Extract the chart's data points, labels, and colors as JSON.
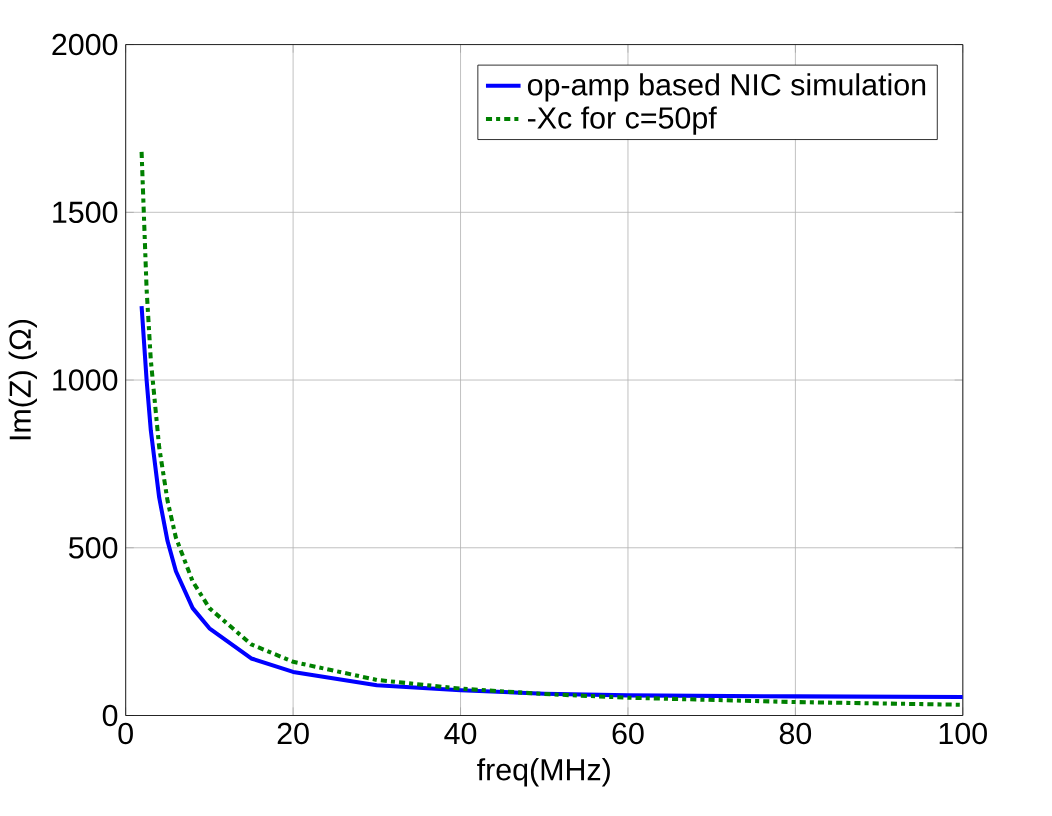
{
  "chart_data": {
    "type": "line",
    "xlabel": "freq(MHz)",
    "ylabel": "Im(Z) (Ω)",
    "xlim": [
      0,
      100
    ],
    "ylim": [
      0,
      2000
    ],
    "xticks": [
      0,
      20,
      40,
      60,
      80,
      100
    ],
    "yticks": [
      0,
      500,
      1000,
      1500,
      2000
    ],
    "grid": true,
    "legend": "top right",
    "series": [
      {
        "name": "op-amp based NIC simulation",
        "color": "#0000ff",
        "line_style": "solid",
        "x": [
          1.9,
          2.5,
          3,
          4,
          5,
          6,
          8,
          10,
          15,
          20,
          30,
          40,
          50,
          60,
          80,
          100
        ],
        "values": [
          1220,
          1000,
          850,
          650,
          520,
          430,
          320,
          260,
          170,
          130,
          90,
          75,
          65,
          60,
          57,
          55
        ]
      },
      {
        "name": "-Xc for c=50pf",
        "color": "#008000",
        "line_style": "dashdotted",
        "x": [
          1.9,
          2.5,
          3,
          4,
          5,
          6,
          8,
          10,
          15,
          20,
          30,
          40,
          50,
          60,
          80,
          100
        ],
        "values": [
          1680,
          1270,
          1060,
          800,
          640,
          530,
          400,
          320,
          212,
          160,
          106,
          80,
          64,
          53,
          40,
          32
        ]
      }
    ]
  }
}
